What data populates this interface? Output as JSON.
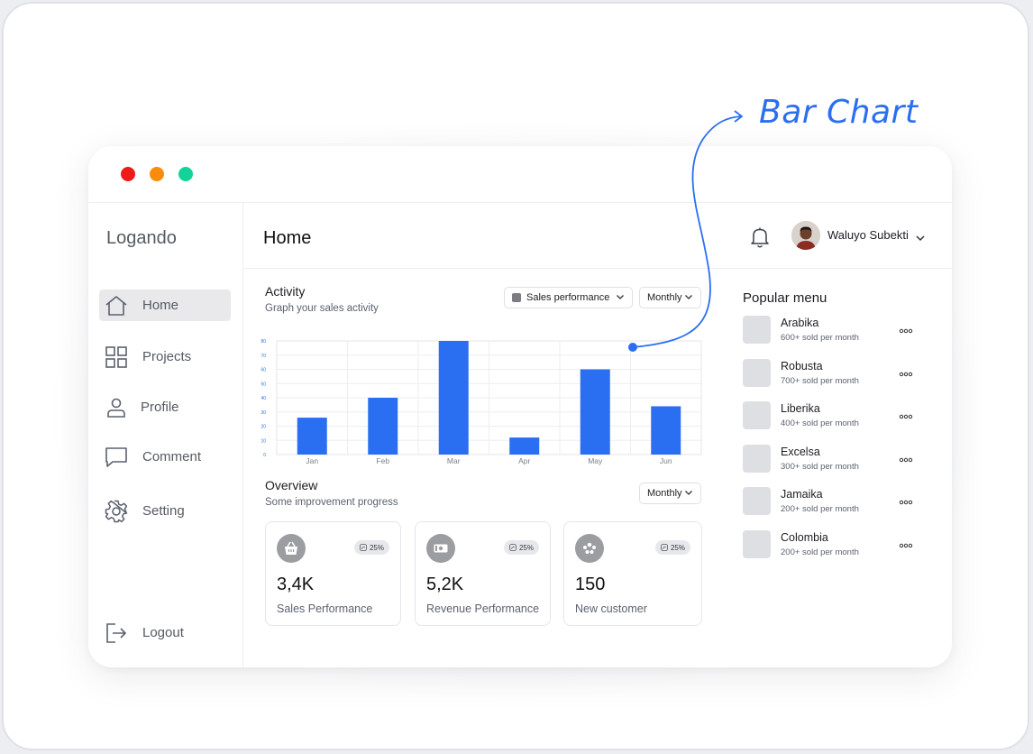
{
  "annotation": {
    "label": "Bar Chart"
  },
  "window": {
    "controls": {
      "close": "#ef1a1a",
      "minimize": "#fb8c0b",
      "zoom": "#14d39a"
    }
  },
  "sidebar": {
    "logo": "Logando",
    "items": [
      {
        "label": "Home",
        "icon": "home-icon",
        "active": true
      },
      {
        "label": "Projects",
        "icon": "grid-icon"
      },
      {
        "label": "Profile",
        "icon": "user-icon"
      },
      {
        "label": "Comment",
        "icon": "comment-icon"
      },
      {
        "label": "Setting",
        "icon": "gear-icon"
      }
    ],
    "logout": "Logout"
  },
  "header": {
    "title": "Home",
    "user": {
      "name": "Waluyo Subekti"
    }
  },
  "activity": {
    "title": "Activity",
    "subtitle": "Graph your sales activity",
    "series_select": "Sales performance",
    "period_select": "Monthly"
  },
  "chart_data": {
    "type": "bar",
    "categories": [
      "Jan",
      "Feb",
      "Mar",
      "Apr",
      "May",
      "Jun"
    ],
    "values": [
      26,
      40,
      80,
      12,
      60,
      34
    ],
    "yticks": [
      0,
      10,
      20,
      30,
      40,
      50,
      60,
      70,
      80
    ],
    "ylim": [
      0,
      80
    ],
    "bar_color": "#2a6ff2",
    "grid": true,
    "xlabel": "",
    "ylabel": ""
  },
  "overview": {
    "title": "Overview",
    "subtitle": "Some improvement progress",
    "period_select": "Monthly",
    "cards": [
      {
        "value": "3,4K",
        "label": "Sales Performance",
        "badge": "25%",
        "icon": "basket-icon"
      },
      {
        "value": "5,2K",
        "label": "Revenue Performance",
        "badge": "25%",
        "icon": "money-icon"
      },
      {
        "value": "150",
        "label": "New customer",
        "badge": "25%",
        "icon": "people-icon"
      }
    ]
  },
  "popular": {
    "title": "Popular menu",
    "items": [
      {
        "name": "Arabika",
        "sold": "600+ sold per month"
      },
      {
        "name": "Robusta",
        "sold": "700+ sold per month"
      },
      {
        "name": "Liberika",
        "sold": "400+ sold per month"
      },
      {
        "name": "Excelsa",
        "sold": "300+ sold per month"
      },
      {
        "name": "Jamaika",
        "sold": "200+ sold per month"
      },
      {
        "name": "Colombia",
        "sold": "200+ sold per month"
      }
    ]
  }
}
